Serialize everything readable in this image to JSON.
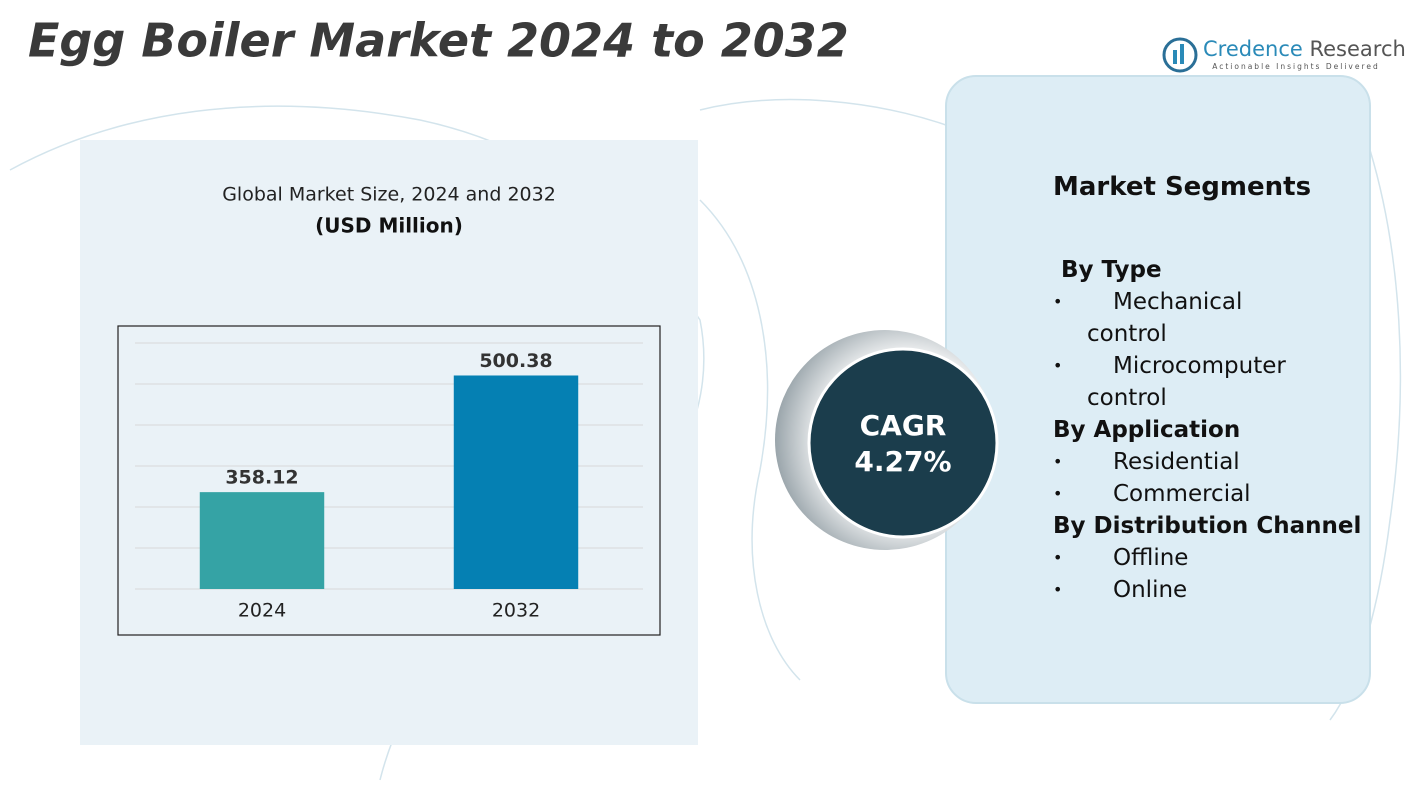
{
  "header": {
    "title": "Egg Boiler Market 2024 to 2032",
    "logo_word1": "Credence",
    "logo_word2": "Research",
    "tagline": "Actionable Insights Delivered"
  },
  "chart_data": {
    "type": "bar",
    "title": "Global Market Size, 2024 and 2032",
    "subtitle": "(USD Million)",
    "categories": [
      "2024",
      "2032"
    ],
    "values": [
      358.12,
      500.38
    ],
    "colors": [
      "#35a3a5",
      "#0580b3"
    ],
    "ylim": [
      240,
      540
    ],
    "grid": true
  },
  "cagr": {
    "label": "CAGR",
    "value": "4.27%"
  },
  "segments": {
    "title": "Market Segments",
    "groups": [
      {
        "heading": "By Type",
        "items": [
          "Mechanical control",
          "Microcomputer control"
        ]
      },
      {
        "heading": "By Application",
        "items": [
          "Residential",
          "Commercial"
        ]
      },
      {
        "heading": "By Distribution Channel",
        "items": [
          "Offline",
          "Online"
        ]
      }
    ]
  }
}
